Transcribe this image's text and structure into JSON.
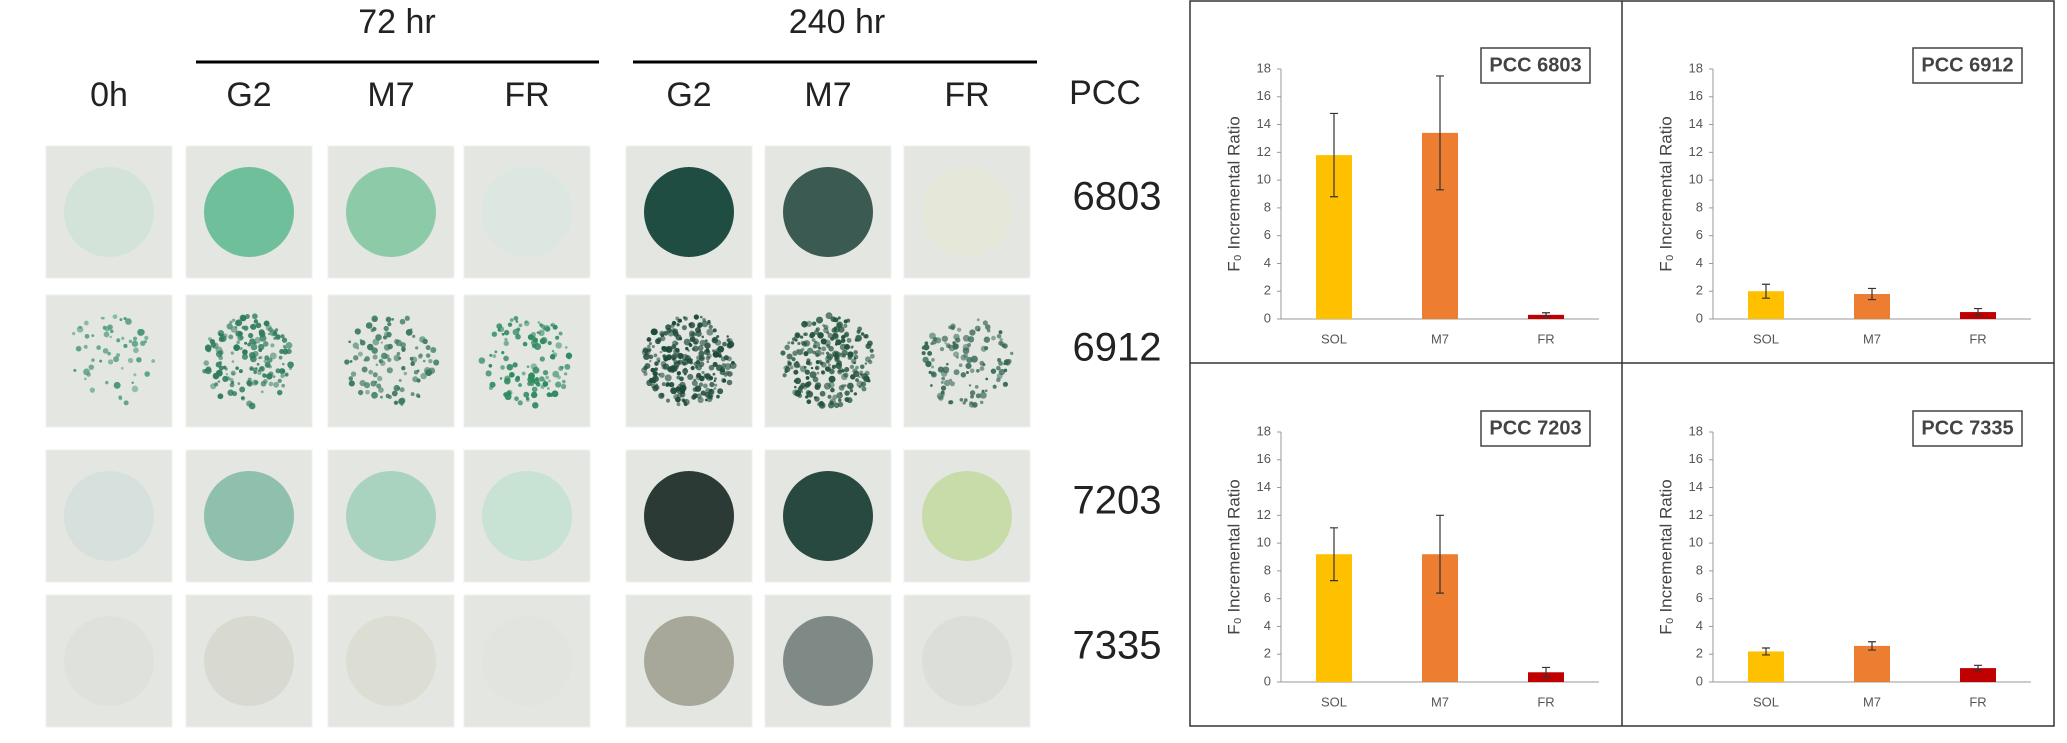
{
  "photo_panel": {
    "time_headers": [
      "72 hr",
      "240 hr"
    ],
    "columns": [
      "0h",
      "G2",
      "M7",
      "FR",
      "G2",
      "M7",
      "FR"
    ],
    "row_header": "PCC",
    "rows": [
      "6803",
      "6912",
      "7203",
      "7335"
    ]
  },
  "chart_data": [
    {
      "type": "bar",
      "title": "PCC 6803",
      "ylabel": "F₀ Incremental Ratio",
      "categories": [
        "SOL",
        "M7",
        "FR"
      ],
      "values": [
        11.8,
        13.4,
        0.3
      ],
      "errors": [
        3.0,
        4.1,
        0.15
      ],
      "colors": [
        "#ffc000",
        "#ed7d31",
        "#c00000"
      ],
      "ylim": [
        0,
        18
      ],
      "yticks": [
        0,
        2,
        4,
        6,
        8,
        10,
        12,
        14,
        16,
        18
      ]
    },
    {
      "type": "bar",
      "title": "PCC 6912",
      "ylabel": "F₀ Incremental Ratio",
      "categories": [
        "SOL",
        "M7",
        "FR"
      ],
      "values": [
        2.0,
        1.8,
        0.5
      ],
      "errors": [
        0.5,
        0.4,
        0.25
      ],
      "colors": [
        "#ffc000",
        "#ed7d31",
        "#c00000"
      ],
      "ylim": [
        0,
        18
      ],
      "yticks": [
        0,
        2,
        4,
        6,
        8,
        10,
        12,
        14,
        16,
        18
      ]
    },
    {
      "type": "bar",
      "title": "PCC 7203",
      "ylabel": "F₀ Incremental Ratio",
      "categories": [
        "SOL",
        "M7",
        "FR"
      ],
      "values": [
        9.2,
        9.2,
        0.7
      ],
      "errors": [
        1.9,
        2.8,
        0.35
      ],
      "colors": [
        "#ffc000",
        "#ed7d31",
        "#c00000"
      ],
      "ylim": [
        0,
        18
      ],
      "yticks": [
        0,
        2,
        4,
        6,
        8,
        10,
        12,
        14,
        16,
        18
      ]
    },
    {
      "type": "bar",
      "title": "PCC 7335",
      "ylabel": "F₀ Incremental Ratio",
      "categories": [
        "SOL",
        "M7",
        "FR"
      ],
      "values": [
        2.2,
        2.6,
        1.0
      ],
      "errors": [
        0.25,
        0.3,
        0.2
      ],
      "colors": [
        "#ffc000",
        "#ed7d31",
        "#c00000"
      ],
      "ylim": [
        0,
        18
      ],
      "yticks": [
        0,
        2,
        4,
        6,
        8,
        10,
        12,
        14,
        16,
        18
      ]
    }
  ]
}
